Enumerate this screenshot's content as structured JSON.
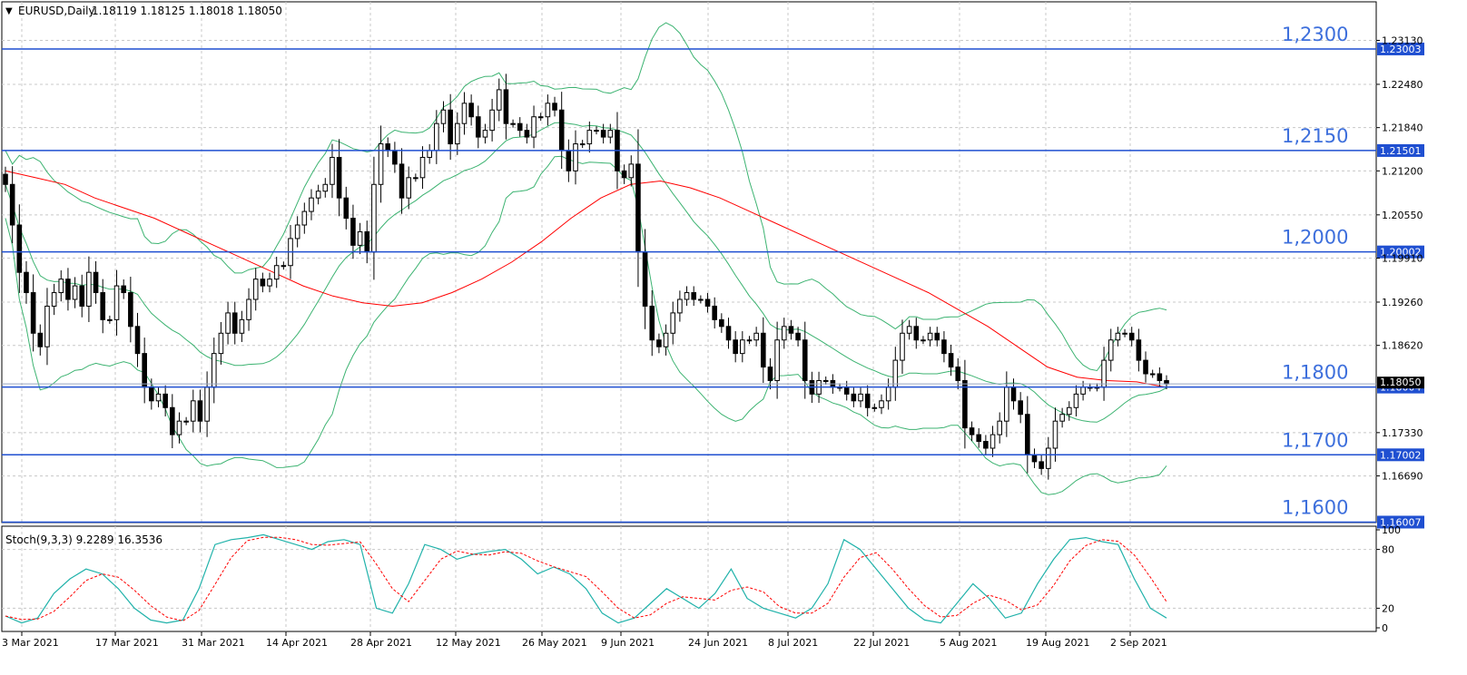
{
  "header": {
    "symbol_label": "EURUSD,Daily",
    "ohlc": "1.18119 1.18125 1.18018 1.18050"
  },
  "indicator": {
    "label": "Stoch(9,3,3) 9.2289 16.3536",
    "axis_ticks": [
      100,
      80,
      20,
      0
    ],
    "levels": [
      80,
      20
    ]
  },
  "colors": {
    "bull_candle": "#ffffff",
    "bear_candle": "#000000",
    "bollinger": "#3cb371",
    "moving_average": "#ff0000",
    "level_line": "#1f4fd1",
    "level_text": "#3d6fdc",
    "stoch_main": "#20b2aa",
    "stoch_signal": "#ff0000",
    "grid": "#c8c8c8",
    "price_tag_bg": "#1f4fd1",
    "price_tag_text": "#ffffff"
  },
  "chart_data": {
    "type": "candlestick",
    "x_tick_labels": [
      "3 Mar 2021",
      "17 Mar 2021",
      "31 Mar 2021",
      "14 Apr 2021",
      "28 Apr 2021",
      "12 May 2021",
      "26 May 2021",
      "9 Jun 2021",
      "24 Jun 2021",
      "8 Jul 2021",
      "22 Jul 2021",
      "5 Aug 2021",
      "19 Aug 2021",
      "2 Sep 2021"
    ],
    "y_ticks": [
      "1.23130",
      "1.22480",
      "1.21840",
      "1.21200",
      "1.20550",
      "1.19910",
      "1.19260",
      "1.18620",
      "1.17330",
      "1.16690"
    ],
    "ylim": [
      1.16,
      1.237
    ],
    "current_price": "1.18050",
    "horizontal_levels": [
      {
        "label": "1,2300",
        "tag": "1.23003",
        "value": 1.23003
      },
      {
        "label": "1,2150",
        "tag": "1.21501",
        "value": 1.21501
      },
      {
        "label": "1,2000",
        "tag": "1.20002",
        "value": 1.20002
      },
      {
        "label": "1,1800",
        "tag": "1.18004",
        "value": 1.18004
      },
      {
        "label": "1,1700",
        "tag": "1.17002",
        "value": 1.17002
      },
      {
        "label": "1,1600",
        "tag": "1.16007",
        "value": 1.16007
      }
    ],
    "close_series": [
      1.21,
      1.204,
      1.197,
      1.194,
      1.188,
      1.186,
      1.192,
      1.194,
      1.196,
      1.193,
      1.195,
      1.192,
      1.197,
      1.194,
      1.19,
      1.19,
      1.195,
      1.194,
      1.189,
      1.185,
      1.18,
      1.178,
      1.179,
      1.177,
      1.173,
      1.175,
      1.175,
      1.178,
      1.175,
      1.18,
      1.185,
      1.188,
      1.191,
      1.188,
      1.19,
      1.193,
      1.196,
      1.195,
      1.196,
      1.198,
      1.198,
      1.202,
      1.204,
      1.206,
      1.208,
      1.209,
      1.21,
      1.214,
      1.208,
      1.205,
      1.201,
      1.203,
      1.2,
      1.21,
      1.216,
      1.215,
      1.213,
      1.208,
      1.211,
      1.211,
      1.214,
      1.215,
      1.219,
      1.221,
      1.216,
      1.219,
      1.222,
      1.22,
      1.217,
      1.218,
      1.221,
      1.224,
      1.219,
      1.219,
      1.218,
      1.217,
      1.22,
      1.22,
      1.222,
      1.221,
      1.215,
      1.212,
      1.216,
      1.216,
      1.218,
      1.218,
      1.217,
      1.218,
      1.212,
      1.211,
      1.213,
      1.2,
      1.192,
      1.187,
      1.186,
      1.188,
      1.191,
      1.193,
      1.194,
      1.193,
      1.193,
      1.192,
      1.19,
      1.189,
      1.187,
      1.185,
      1.187,
      1.187,
      1.188,
      1.183,
      1.181,
      1.187,
      1.189,
      1.188,
      1.187,
      1.181,
      1.179,
      1.181,
      1.181,
      1.18,
      1.18,
      1.179,
      1.178,
      1.179,
      1.177,
      1.177,
      1.178,
      1.18,
      1.184,
      1.188,
      1.189,
      1.187,
      1.187,
      1.188,
      1.187,
      1.185,
      1.183,
      1.181,
      1.174,
      1.173,
      1.172,
      1.171,
      1.173,
      1.175,
      1.18,
      1.178,
      1.176,
      1.17,
      1.169,
      1.168,
      1.171,
      1.175,
      1.176,
      1.177,
      1.179,
      1.18,
      1.18,
      1.18,
      1.184,
      1.187,
      1.188,
      1.188,
      1.187,
      1.184,
      1.182,
      1.182,
      1.181,
      1.1805
    ],
    "ma_series": [
      1.212,
      1.211,
      1.21,
      1.208,
      1.2065,
      1.205,
      1.203,
      1.201,
      1.199,
      1.197,
      1.195,
      1.1935,
      1.1925,
      1.192,
      1.1925,
      1.194,
      1.196,
      1.1985,
      1.2015,
      1.205,
      1.208,
      1.21,
      1.2105,
      1.2095,
      1.208,
      1.206,
      1.204,
      1.202,
      1.2,
      1.198,
      1.196,
      1.194,
      1.1915,
      1.189,
      1.186,
      1.183,
      1.1815,
      1.181,
      1.1808,
      1.18
    ],
    "stoch_main": [
      12,
      5,
      10,
      35,
      50,
      60,
      55,
      40,
      20,
      8,
      5,
      8,
      40,
      85,
      90,
      92,
      95,
      90,
      85,
      80,
      88,
      90,
      85,
      20,
      15,
      45,
      85,
      80,
      70,
      75,
      78,
      80,
      70,
      55,
      62,
      55,
      40,
      15,
      5,
      10,
      25,
      40,
      30,
      20,
      35,
      60,
      30,
      20,
      15,
      10,
      20,
      45,
      90,
      80,
      60,
      40,
      20,
      8,
      5,
      25,
      45,
      30,
      10,
      15,
      45,
      70,
      90,
      92,
      88,
      85,
      50,
      20,
      10
    ]
  }
}
